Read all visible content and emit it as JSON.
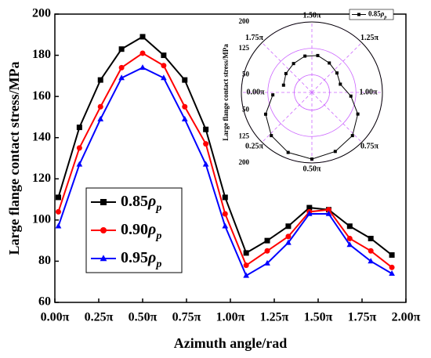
{
  "chart_data": [
    {
      "type": "line",
      "y_label": "Large flange contact stress/MPa",
      "x_label": "Azimuth angle/rad",
      "x": [
        0.02,
        0.14,
        0.26,
        0.38,
        0.5,
        0.62,
        0.74,
        0.86,
        0.97,
        1.09,
        1.21,
        1.33,
        1.45,
        1.56,
        1.68,
        1.8,
        1.92
      ],
      "xlim": [
        0,
        2
      ],
      "xticks": [
        {
          "value": 0,
          "label": "0.00π"
        },
        {
          "value": 0.25,
          "label": "0.25π"
        },
        {
          "value": 0.5,
          "label": "0.50π"
        },
        {
          "value": 0.75,
          "label": "0.75π"
        },
        {
          "value": 1,
          "label": "1.00π"
        },
        {
          "value": 1.25,
          "label": "1.25π"
        },
        {
          "value": 1.5,
          "label": "1.50π"
        },
        {
          "value": 1.75,
          "label": "1.75π"
        },
        {
          "value": 2,
          "label": "2.00π"
        }
      ],
      "ylim": [
        60,
        200
      ],
      "yticks": [
        60,
        80,
        100,
        120,
        140,
        160,
        180,
        200
      ],
      "legend": "lower left",
      "series": [
        {
          "name": "0.85ρp",
          "color": "#000000",
          "marker": "square",
          "values": [
            111,
            145,
            168,
            183,
            189,
            180,
            168,
            144,
            111,
            84,
            90,
            97,
            106,
            105,
            97,
            91,
            83
          ]
        },
        {
          "name": "0.90ρp",
          "color": "#ff0000",
          "marker": "circle",
          "values": [
            104,
            135,
            155,
            174,
            181,
            175,
            155,
            137,
            103,
            78,
            85,
            92,
            104,
            105,
            91,
            85,
            77
          ]
        },
        {
          "name": "0.95ρp",
          "color": "#0000ff",
          "marker": "triangle",
          "values": [
            97,
            127,
            149,
            169,
            174,
            169,
            149,
            127,
            97,
            73,
            79,
            89,
            103,
            103,
            88,
            80,
            74
          ]
        }
      ]
    },
    {
      "type": "polar",
      "y_label": "Large flange contact stress/MPa",
      "theta": [
        0.02,
        0.14,
        0.26,
        0.38,
        0.5,
        0.62,
        0.74,
        0.86,
        0.97,
        1.09,
        1.21,
        1.33,
        1.45,
        1.56,
        1.68,
        1.8,
        1.92
      ],
      "theta_ticks": [
        {
          "value": 0,
          "label": "0.00π"
        },
        {
          "value": 0.25,
          "label": "0.25π"
        },
        {
          "value": 0.5,
          "label": "0.50π"
        },
        {
          "value": 0.75,
          "label": "0.75π"
        },
        {
          "value": 1,
          "label": "1.00π"
        },
        {
          "value": 1.25,
          "label": "1.25π"
        },
        {
          "value": 1.5,
          "label": "1.50π"
        },
        {
          "value": 1.75,
          "label": "1.75π"
        }
      ],
      "rlim": [
        0,
        200
      ],
      "rticks": [
        50,
        125,
        200
      ],
      "grid_color": "#cc66ff",
      "legend": "upper right",
      "series": [
        {
          "name": "0.85ρp",
          "color": "#000000",
          "marker": "square",
          "values": [
            111,
            145,
            168,
            183,
            189,
            180,
            168,
            144,
            111,
            84,
            90,
            97,
            106,
            105,
            97,
            91,
            83
          ]
        }
      ]
    }
  ]
}
